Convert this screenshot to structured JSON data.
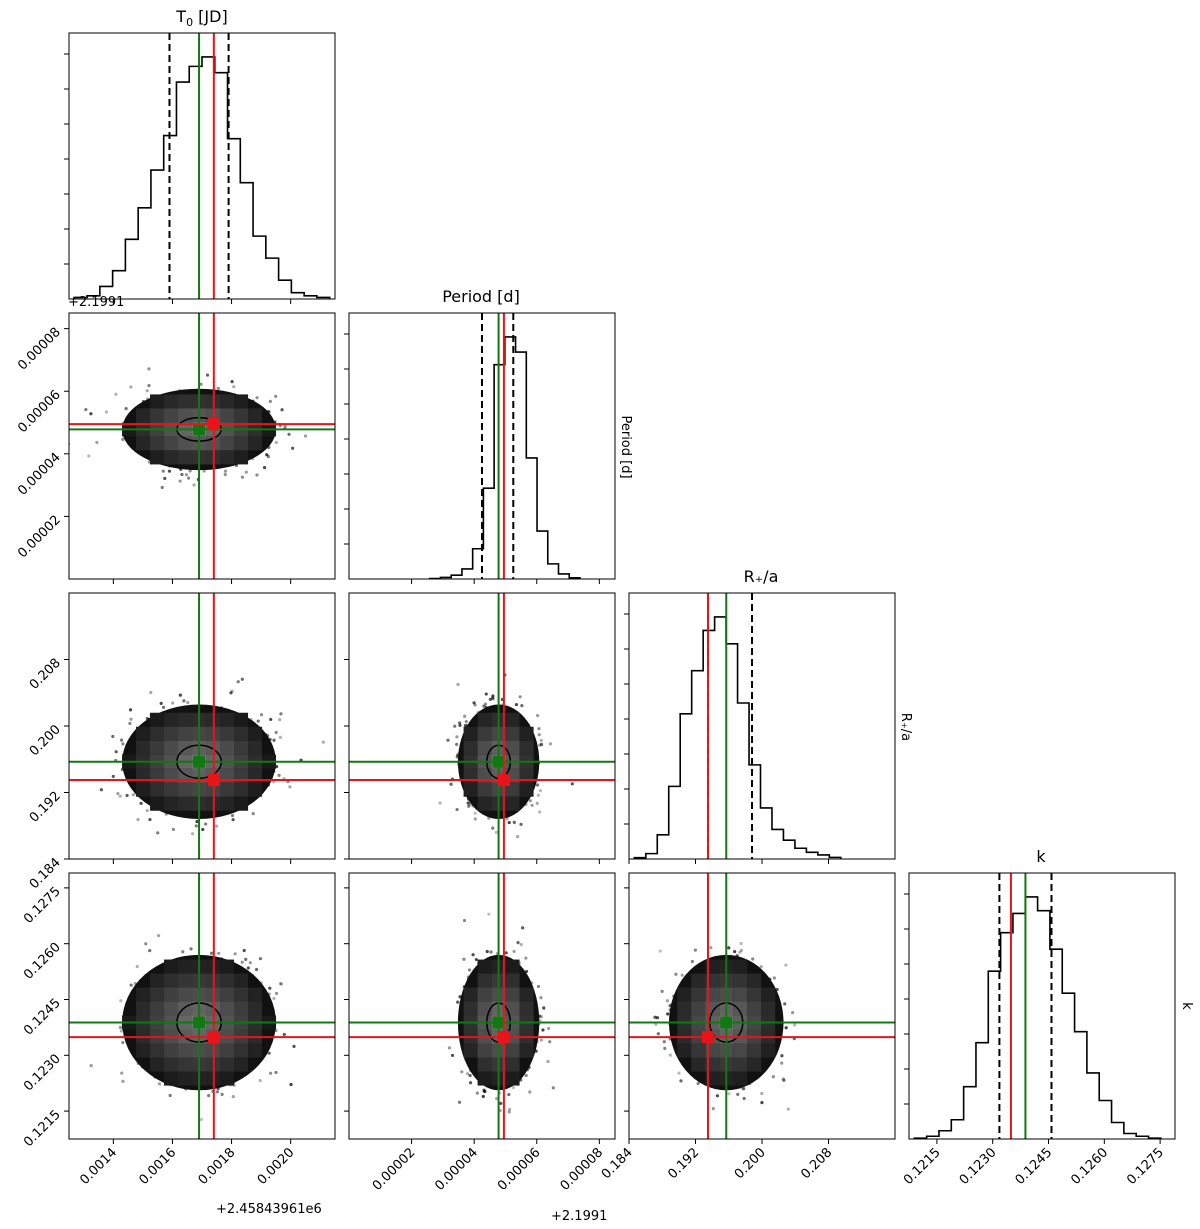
{
  "chart_data": {
    "type": "corner",
    "parameters": [
      {
        "name": "T0 [JD]",
        "title_main": "T",
        "title_sub": "0",
        "title_rest": " [JD]",
        "range": [
          0.00125,
          0.00215
        ],
        "ticks": [
          0.0014,
          0.0016,
          0.0018,
          0.002
        ],
        "tick_labels": [
          "0.0014",
          "0.0016",
          "0.0018",
          "0.0020"
        ],
        "offset_label": "+2.45843961e6",
        "true_value": 0.00174,
        "median": 0.00169,
        "quantiles": [
          0.00159,
          0.00179
        ],
        "hist": [
          0.5,
          1,
          4,
          9,
          19,
          29,
          41,
          52,
          69,
          74,
          77,
          72,
          51,
          37,
          20,
          13,
          6,
          2,
          1,
          0.5
        ]
      },
      {
        "name": "Period [d]",
        "title_main": "Period [d]",
        "range": [
          0.0,
          8.5e-05
        ],
        "ticks": [
          2e-05,
          4e-05,
          6e-05,
          8e-05
        ],
        "tick_labels": [
          "0.00002",
          "0.00004",
          "0.00006",
          "0.00008"
        ],
        "offset_label": "+2.1991",
        "top_offset_label": "+2.1991",
        "side_label": "Period [d]",
        "true_value": 4.95e-05,
        "median": 4.78e-05,
        "quantiles": [
          4.25e-05,
          5.25e-05
        ],
        "hist": [
          0.2,
          0.6,
          1.5,
          4,
          12,
          36,
          85,
          96,
          90,
          48,
          19,
          6,
          2,
          0.5
        ]
      },
      {
        "name": "R*/a",
        "title_main": "R₊/a",
        "range": [
          0.184,
          0.216
        ],
        "ticks": [
          0.184,
          0.192,
          0.2,
          0.208
        ],
        "tick_labels": [
          "0.184",
          "0.192",
          "0.200",
          "0.208"
        ],
        "side_label": "R₊/a",
        "true_value": 0.1935,
        "median": 0.1957,
        "quantiles": [
          0.1935,
          0.1988
        ],
        "hist": [
          0.5,
          2,
          9,
          27,
          54,
          70,
          85,
          90,
          80,
          58,
          35,
          19,
          11,
          7,
          4,
          2.5,
          1.5,
          0.6
        ]
      },
      {
        "name": "k",
        "title_main": "k",
        "range": [
          0.12075,
          0.1279
        ],
        "ticks": [
          0.1215,
          0.123,
          0.1245,
          0.126,
          0.1275
        ],
        "tick_labels": [
          "0.1215",
          "0.1230",
          "0.1245",
          "0.1260",
          "0.1275"
        ],
        "side_label": "k",
        "true_value": 0.12349,
        "median": 0.12388,
        "quantiles": [
          0.12318,
          0.12458
        ],
        "hist": [
          0.3,
          1,
          3,
          7,
          19,
          35,
          61,
          75,
          82,
          88,
          83,
          69,
          53,
          39,
          24,
          14,
          6,
          2,
          1,
          0.3
        ]
      }
    ],
    "row_tick_labels": {
      "1": [
        "0.00002",
        "0.00004",
        "0.00006",
        "0.00008"
      ],
      "2": [
        "0.184",
        "0.192",
        "0.200",
        "0.208"
      ],
      "3": [
        "0.1215",
        "0.1230",
        "0.1245",
        "0.1260",
        "0.1275"
      ]
    },
    "colors": {
      "truth": "#e8141a",
      "median": "#127812",
      "quantile": "#000000",
      "hist": "#000000"
    }
  }
}
